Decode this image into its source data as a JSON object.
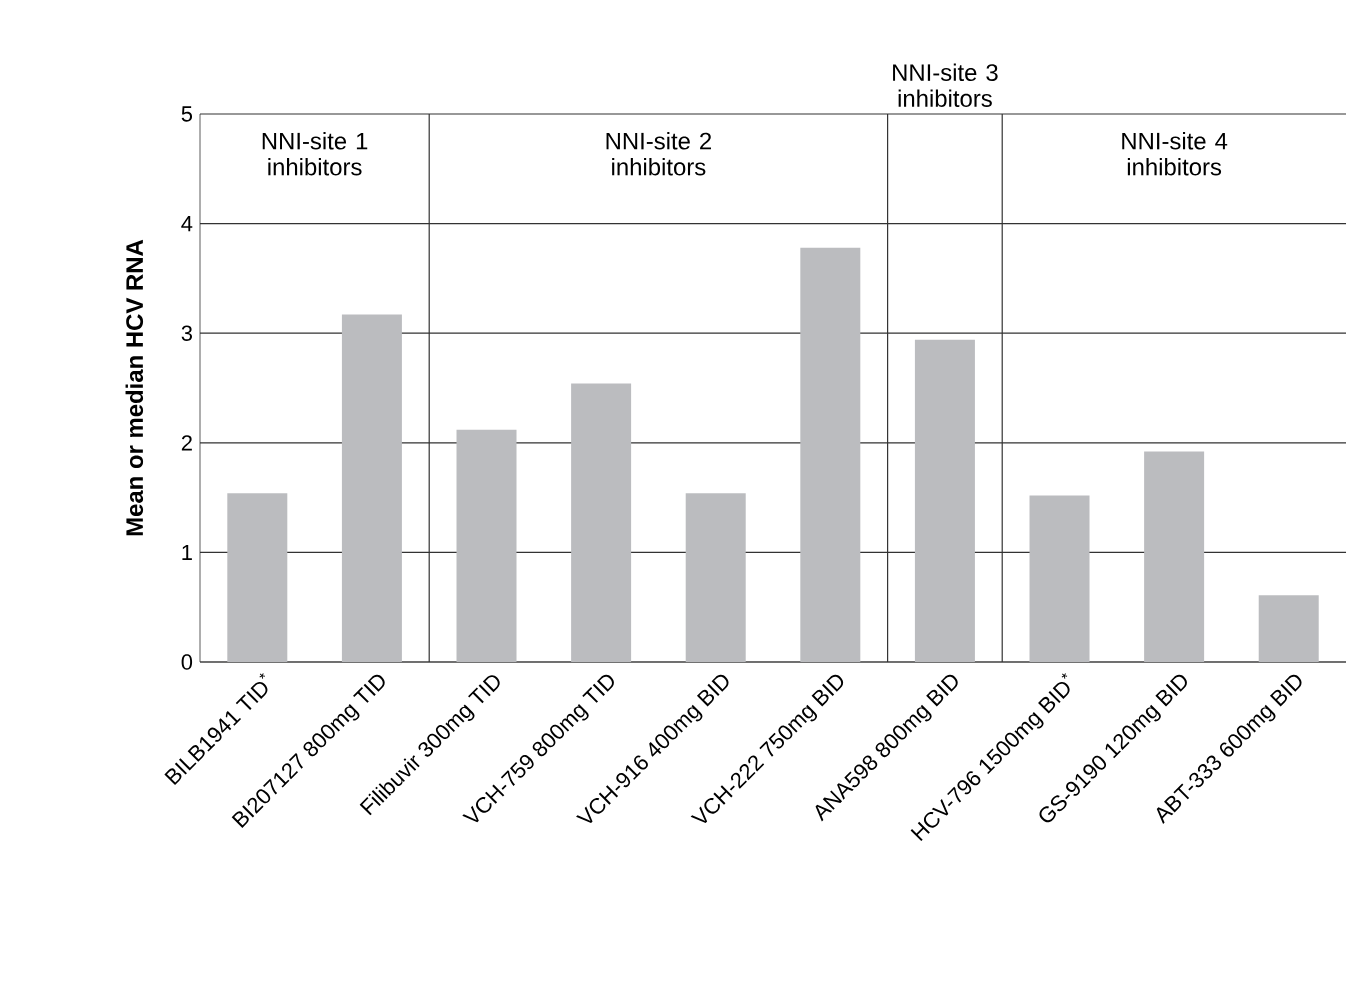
{
  "chart_data": {
    "type": "bar",
    "ylabel": "Mean or median HCV RNA",
    "categories": [
      "BILB1941 TID$^{*}$",
      "BI207127 800mg TID",
      "Filibuvir 300mg TID",
      "VCH-759 800mg TID",
      "VCH-916 400mg BID",
      "VCH-222 750mg BID",
      "ANA598 800mg BID",
      "HCV-796 1500mg BID$^{*}$",
      "GS-9190 120mg BID",
      "ABT-333 600mg BID"
    ],
    "values": [
      1.54,
      3.17,
      2.12,
      2.54,
      1.54,
      3.78,
      2.94,
      1.52,
      1.92,
      0.61
    ],
    "color": "#bbbcbf",
    "ylim": [
      0,
      5
    ],
    "yticks": [
      0,
      1,
      2,
      3,
      4,
      5
    ],
    "grid": "y",
    "annotations": [
      "NNI-site 1 inhibitors",
      "NNI-site 2 inhibitors",
      "NNI-site 3 inhibitors",
      "NNI-site 4 inhibitors"
    ]
  }
}
